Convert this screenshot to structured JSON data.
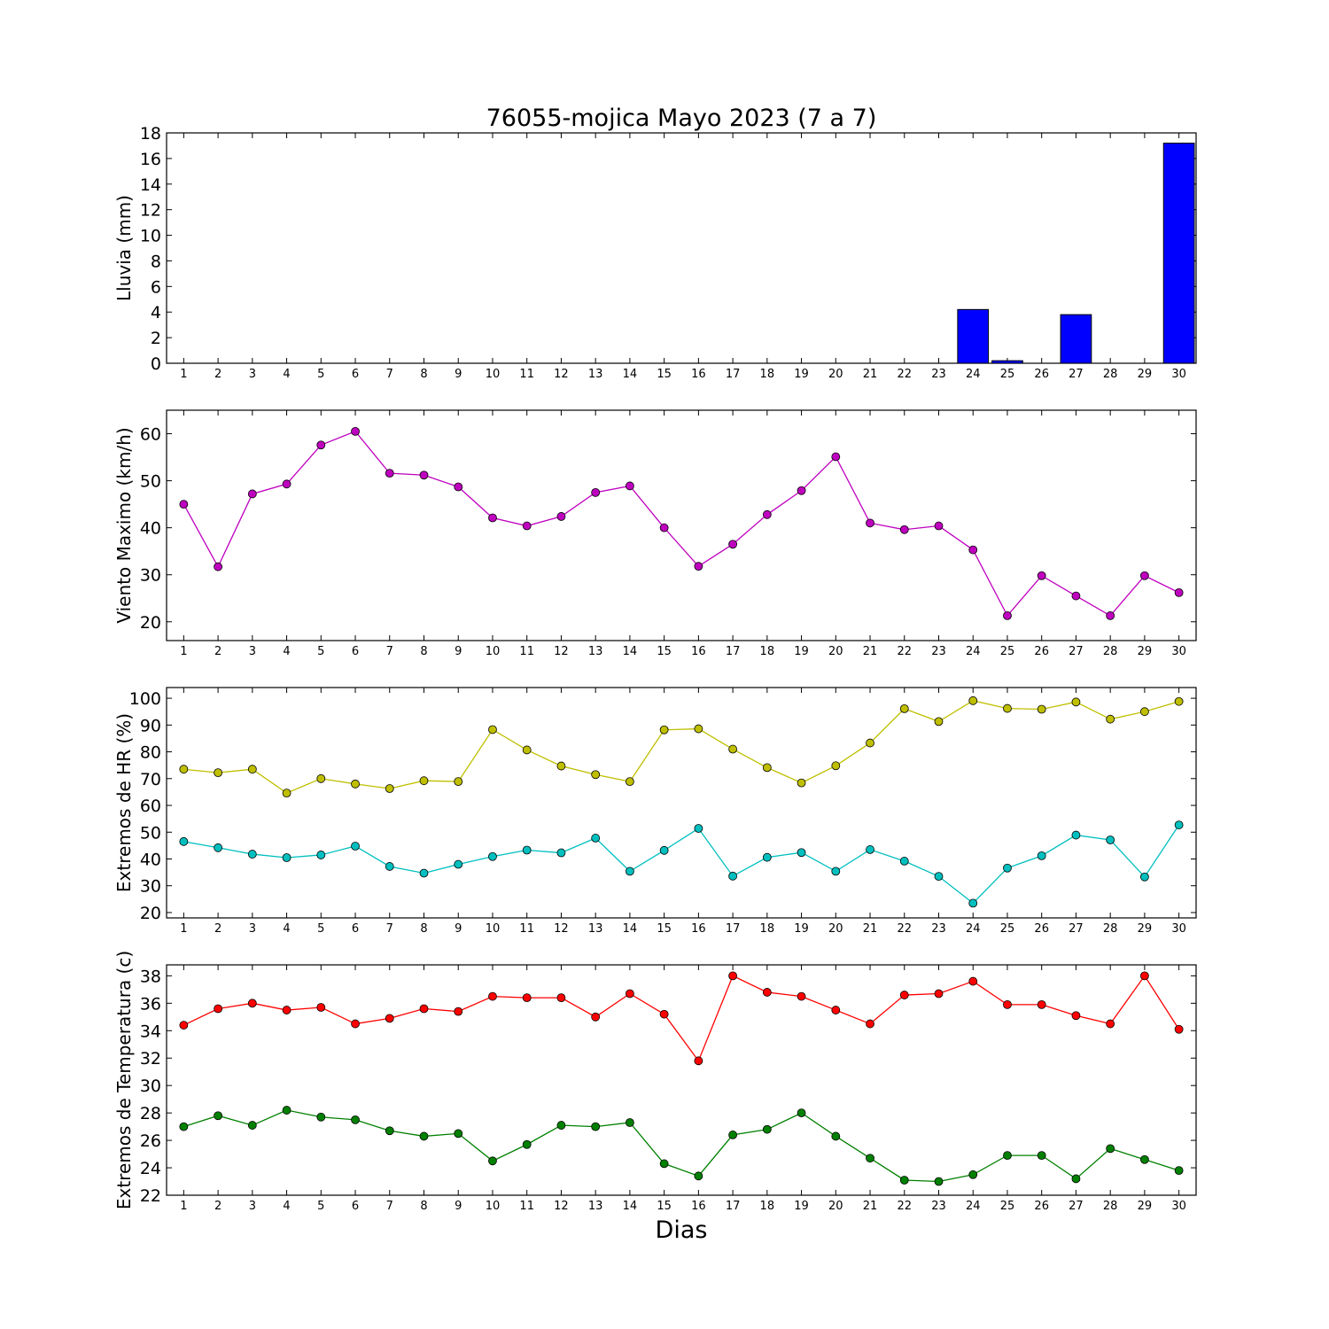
{
  "title": "76055-mojica Mayo 2023  (7 a 7)",
  "xlabel": "Dias",
  "chart_data": [
    {
      "type": "bar",
      "ylabel": "Lluvia (mm)",
      "ylim": [
        0,
        18
      ],
      "yticks": [
        0,
        2,
        4,
        6,
        8,
        10,
        12,
        14,
        16,
        18
      ],
      "categories": [
        1,
        2,
        3,
        4,
        5,
        6,
        7,
        8,
        9,
        10,
        11,
        12,
        13,
        14,
        15,
        16,
        17,
        18,
        19,
        20,
        21,
        22,
        23,
        24,
        25,
        26,
        27,
        28,
        29,
        30
      ],
      "series": [
        {
          "color": "#0000ff",
          "values": [
            0,
            0,
            0,
            0,
            0,
            0,
            0,
            0,
            0,
            0,
            0,
            0,
            0,
            0,
            0,
            0,
            0,
            0,
            0,
            0,
            0,
            0,
            0,
            4.2,
            0.2,
            0,
            3.8,
            0,
            0,
            17.2
          ]
        }
      ]
    },
    {
      "type": "line",
      "ylabel": "Viento Maximo (km/h)",
      "ylim": [
        16,
        65
      ],
      "yticks": [
        20,
        30,
        40,
        50,
        60
      ],
      "categories": [
        1,
        2,
        3,
        4,
        5,
        6,
        7,
        8,
        9,
        10,
        11,
        12,
        13,
        14,
        15,
        16,
        17,
        18,
        19,
        20,
        21,
        22,
        23,
        24,
        25,
        26,
        27,
        28,
        29,
        30
      ],
      "series": [
        {
          "color": "#bf00bf",
          "values": [
            45,
            31.7,
            47.2,
            49.3,
            57.6,
            60.5,
            51.6,
            51.2,
            48.7,
            42.1,
            40.4,
            42.4,
            47.5,
            48.9,
            40,
            31.8,
            36.5,
            42.8,
            47.9,
            55.1,
            41,
            39.6,
            40.4,
            35.3,
            21.3,
            29.8,
            25.5,
            21.3,
            29.8,
            26.2
          ]
        }
      ]
    },
    {
      "type": "line",
      "ylabel": "Extremos de HR (%)",
      "ylim": [
        18,
        104
      ],
      "yticks": [
        20,
        30,
        40,
        50,
        60,
        70,
        80,
        90,
        100
      ],
      "categories": [
        1,
        2,
        3,
        4,
        5,
        6,
        7,
        8,
        9,
        10,
        11,
        12,
        13,
        14,
        15,
        16,
        17,
        18,
        19,
        20,
        21,
        22,
        23,
        24,
        25,
        26,
        27,
        28,
        29,
        30
      ],
      "series": [
        {
          "color": "#bfbf00",
          "values": [
            73.5,
            72.2,
            73.5,
            64.6,
            70,
            68,
            66.3,
            69.2,
            68.9,
            88.3,
            80.7,
            74.7,
            71.5,
            68.9,
            88.2,
            88.6,
            81,
            74.1,
            68.4,
            74.8,
            83.3,
            96.1,
            91.3,
            99.1,
            96.2,
            95.9,
            98.6,
            92.2,
            95,
            98.8
          ]
        },
        {
          "color": "#00bfbf",
          "values": [
            46.5,
            44.2,
            41.8,
            40.5,
            41.5,
            44.8,
            37.2,
            34.7,
            38,
            40.9,
            43.3,
            42.3,
            47.8,
            35.4,
            43.2,
            51.4,
            33.6,
            40.6,
            42.4,
            35.4,
            43.5,
            39.2,
            33.5,
            23.5,
            36.6,
            41.2,
            48.9,
            47.1,
            33.3,
            52.7
          ]
        }
      ]
    },
    {
      "type": "line",
      "ylabel": "Extremos de Temperatura (c)",
      "ylim": [
        22,
        38.8
      ],
      "yticks": [
        22,
        24,
        26,
        28,
        30,
        32,
        34,
        36,
        38
      ],
      "categories": [
        1,
        2,
        3,
        4,
        5,
        6,
        7,
        8,
        9,
        10,
        11,
        12,
        13,
        14,
        15,
        16,
        17,
        18,
        19,
        20,
        21,
        22,
        23,
        24,
        25,
        26,
        27,
        28,
        29,
        30
      ],
      "series": [
        {
          "color": "#ff0000",
          "values": [
            34.4,
            35.6,
            36,
            35.5,
            35.7,
            34.5,
            34.9,
            35.6,
            35.4,
            36.5,
            36.4,
            36.4,
            35,
            36.7,
            35.2,
            31.8,
            38,
            36.8,
            36.5,
            35.5,
            34.5,
            36.6,
            36.7,
            37.6,
            35.9,
            35.9,
            35.1,
            34.5,
            38,
            34.1
          ]
        },
        {
          "color": "#008000",
          "values": [
            27,
            27.8,
            27.1,
            28.2,
            27.7,
            27.5,
            26.7,
            26.3,
            26.5,
            24.5,
            25.7,
            27.1,
            27,
            27.3,
            24.3,
            23.4,
            26.4,
            26.8,
            28,
            26.3,
            24.7,
            23.1,
            23,
            23.5,
            24.9,
            24.9,
            23.2,
            25.4,
            24.6,
            23.8
          ]
        }
      ]
    }
  ]
}
